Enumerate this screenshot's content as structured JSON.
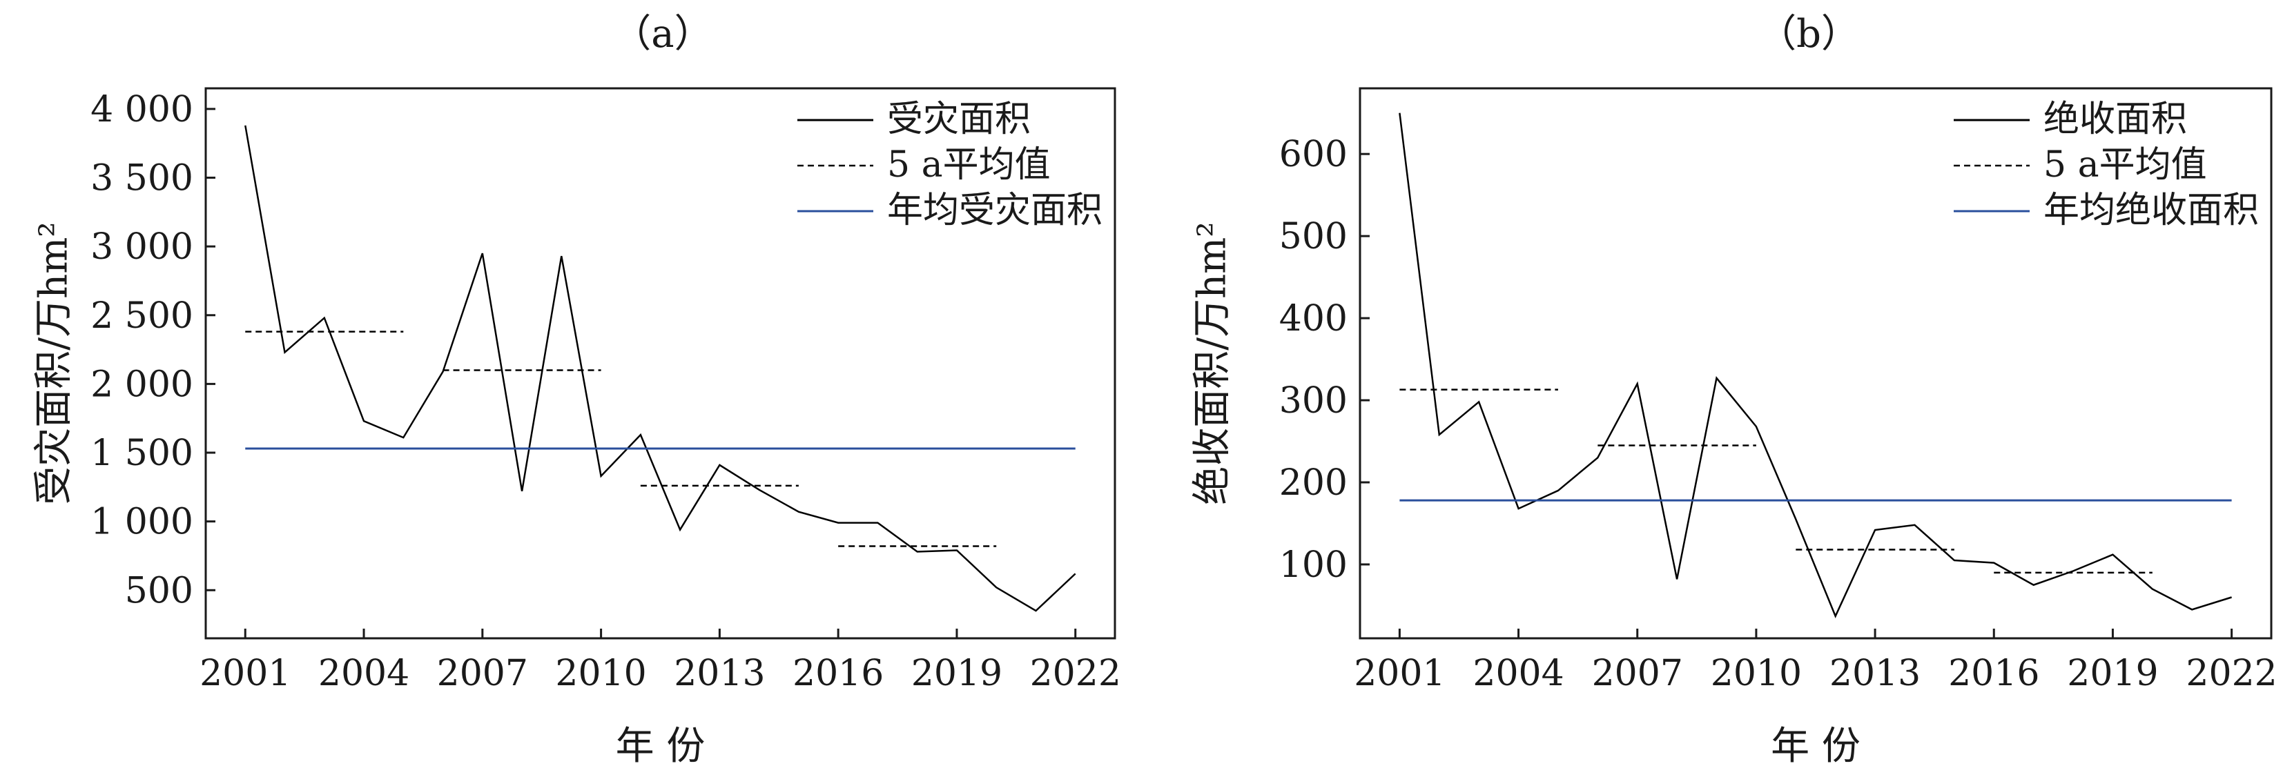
{
  "chart_data": [
    {
      "type": "line",
      "panel_label": "（a）",
      "xlabel": "年 份",
      "ylabel": "受灾面积/万hm²",
      "xlim": [
        2000,
        2023
      ],
      "ylim": [
        150,
        4150
      ],
      "x_ticks": [
        2001,
        2004,
        2007,
        2010,
        2013,
        2016,
        2019,
        2022
      ],
      "y_ticks": [
        500,
        1000,
        1500,
        2000,
        2500,
        3000,
        3500,
        4000
      ],
      "y_tick_labels": [
        "500",
        "1 000",
        "1 500",
        "2 000",
        "2 500",
        "3 000",
        "3 500",
        "4 000"
      ],
      "legend_position": "top-right",
      "series": [
        {
          "name": "受灾面积",
          "style": "solid",
          "color": "#000000",
          "x": [
            2001,
            2002,
            2003,
            2004,
            2005,
            2006,
            2007,
            2008,
            2009,
            2010,
            2011,
            2012,
            2013,
            2014,
            2015,
            2016,
            2017,
            2018,
            2019,
            2020,
            2021,
            2022
          ],
          "values": [
            3880,
            2230,
            2480,
            1730,
            1610,
            2090,
            2950,
            1220,
            2930,
            1330,
            1630,
            940,
            1410,
            1230,
            1070,
            990,
            990,
            780,
            790,
            520,
            350,
            620
          ]
        },
        {
          "name": "5 a平均值",
          "style": "dashed",
          "color": "#000000",
          "segments": [
            {
              "x_start": 2001,
              "x_end": 2005,
              "value": 2380
            },
            {
              "x_start": 2006,
              "x_end": 2010,
              "value": 2100
            },
            {
              "x_start": 2011,
              "x_end": 2015,
              "value": 1260
            },
            {
              "x_start": 2016,
              "x_end": 2020,
              "value": 820
            }
          ]
        },
        {
          "name": "年均受灾面积",
          "style": "solid",
          "color": "#2a4f9c",
          "x_start": 2001,
          "x_end": 2022,
          "value": 1530
        }
      ]
    },
    {
      "type": "line",
      "panel_label": "（b）",
      "xlabel": "年 份",
      "ylabel": "绝收面积/万hm²",
      "xlim": [
        2000,
        2023
      ],
      "ylim": [
        10,
        680
      ],
      "x_ticks": [
        2001,
        2004,
        2007,
        2010,
        2013,
        2016,
        2019,
        2022
      ],
      "y_ticks": [
        100,
        200,
        300,
        400,
        500,
        600
      ],
      "y_tick_labels": [
        "100",
        "200",
        "300",
        "400",
        "500",
        "600"
      ],
      "legend_position": "top-right",
      "series": [
        {
          "name": "绝收面积",
          "style": "solid",
          "color": "#000000",
          "x": [
            2001,
            2002,
            2003,
            2004,
            2005,
            2006,
            2007,
            2008,
            2009,
            2010,
            2011,
            2012,
            2013,
            2014,
            2015,
            2016,
            2017,
            2018,
            2019,
            2020,
            2021,
            2022
          ],
          "values": [
            650,
            258,
            298,
            168,
            190,
            230,
            320,
            82,
            327,
            268,
            155,
            37,
            142,
            148,
            105,
            102,
            75,
            92,
            112,
            70,
            45,
            60
          ]
        },
        {
          "name": "5 a平均值",
          "style": "dashed",
          "color": "#000000",
          "segments": [
            {
              "x_start": 2001,
              "x_end": 2005,
              "value": 313
            },
            {
              "x_start": 2006,
              "x_end": 2010,
              "value": 245
            },
            {
              "x_start": 2011,
              "x_end": 2015,
              "value": 118
            },
            {
              "x_start": 2016,
              "x_end": 2020,
              "value": 90
            }
          ]
        },
        {
          "name": "年均绝收面积",
          "style": "solid",
          "color": "#2a4f9c",
          "x_start": 2001,
          "x_end": 2022,
          "value": 178
        }
      ]
    }
  ]
}
